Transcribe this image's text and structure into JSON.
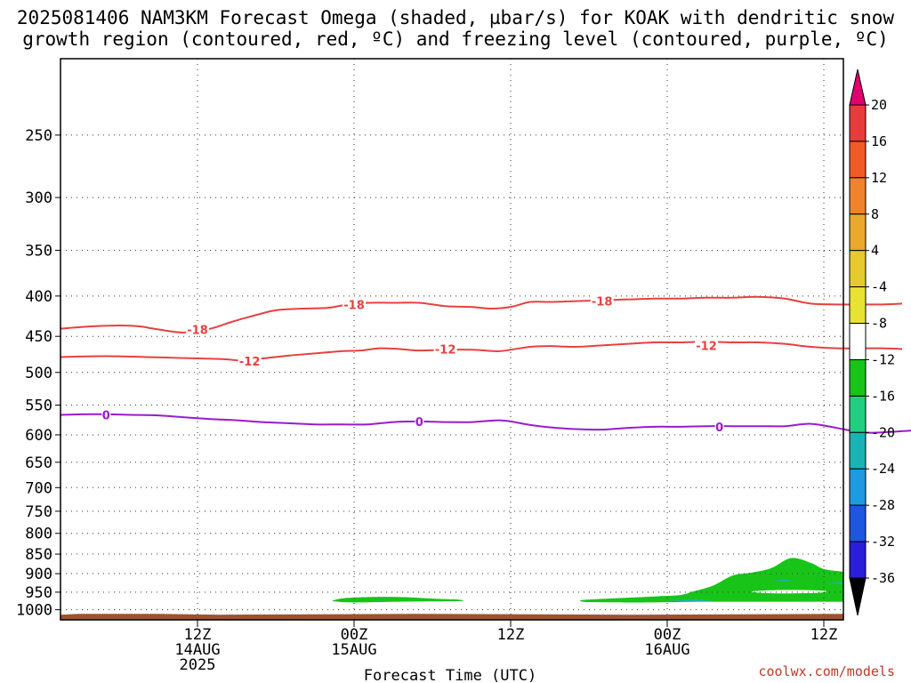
{
  "title_line1": "2025081406 NAM3KM Forecast Omega (shaded, µbar/s) for KOAK with dendritic snow",
  "title_line2": "growth region (contoured, red, ºC) and freezing level (contoured, purple, ºC)",
  "credit": "coolwx.com/models",
  "chart_data": {
    "type": "time-height cross section",
    "xlabel": "Forecast Time (UTC)",
    "x_range_hours": [
      -4.5,
      55.5
    ],
    "x_ticks": [
      {
        "hour": 6,
        "labels": [
          "12Z",
          "14AUG",
          "2025"
        ]
      },
      {
        "hour": 18,
        "labels": [
          "00Z",
          "15AUG"
        ]
      },
      {
        "hour": 30,
        "labels": [
          "12Z"
        ]
      },
      {
        "hour": 42,
        "labels": [
          "00Z",
          "16AUG"
        ]
      },
      {
        "hour": 54,
        "labels": [
          "12Z"
        ]
      }
    ],
    "y_axis": "pressure (hPa)",
    "y_ticks": [
      250,
      300,
      350,
      400,
      450,
      500,
      550,
      600,
      650,
      700,
      750,
      800,
      850,
      900,
      950,
      1000
    ],
    "y_range": [
      200,
      1030
    ],
    "grid": "dotted",
    "colorbar": {
      "label_values": [
        20,
        16,
        12,
        8,
        4,
        -4,
        -8,
        -12,
        -16,
        -20,
        -24,
        -28,
        -32,
        -36
      ],
      "colors": [
        "#e0006e",
        "#e83c3c",
        "#f05a28",
        "#f0822c",
        "#e9a82a",
        "#e6c92c",
        "#e8e233",
        "#ffffff",
        "#18c418",
        "#20d080",
        "#1ab3b3",
        "#1e9ae0",
        "#1e56e0",
        "#2a1ed8",
        "#6a12c8",
        "#9a10c8",
        "#a0a0a0",
        "#000000"
      ]
    },
    "contours": [
      {
        "name": "-18",
        "color": "#e84040",
        "label_text": "-18",
        "points": [
          [
            -4.5,
            440
          ],
          [
            -2,
            437
          ],
          [
            0,
            436
          ],
          [
            1.5,
            437
          ],
          [
            3,
            441
          ],
          [
            5,
            445
          ],
          [
            7,
            440
          ],
          [
            8.5,
            432
          ],
          [
            10,
            425
          ],
          [
            12,
            417
          ],
          [
            14,
            415
          ],
          [
            16,
            414
          ],
          [
            17.5,
            410
          ],
          [
            19,
            408
          ],
          [
            21,
            408
          ],
          [
            23,
            408
          ],
          [
            25,
            412
          ],
          [
            27,
            413
          ],
          [
            28.5,
            415
          ],
          [
            30,
            413
          ],
          [
            31.5,
            407
          ],
          [
            33,
            407
          ],
          [
            35,
            406
          ],
          [
            37,
            405
          ],
          [
            39,
            404
          ],
          [
            41,
            403
          ],
          [
            43,
            403
          ],
          [
            45,
            402
          ],
          [
            47,
            402
          ],
          [
            49,
            401
          ],
          [
            51,
            403
          ],
          [
            53,
            409
          ],
          [
            55,
            410
          ],
          [
            57,
            410
          ],
          [
            58.5,
            410
          ],
          [
            60,
            409
          ]
        ],
        "labels": [
          [
            6,
            441
          ],
          [
            18,
            410
          ],
          [
            37,
            406
          ]
        ]
      },
      {
        "name": "-12",
        "color": "#e84040",
        "label_text": "-12",
        "points": [
          [
            -4.5,
            478
          ],
          [
            -2,
            477
          ],
          [
            0,
            477
          ],
          [
            2,
            478
          ],
          [
            4,
            479
          ],
          [
            6,
            480
          ],
          [
            8,
            481
          ],
          [
            9.5,
            483
          ],
          [
            11,
            480
          ],
          [
            13,
            476
          ],
          [
            15,
            473
          ],
          [
            17,
            470
          ],
          [
            18.5,
            469
          ],
          [
            20,
            466
          ],
          [
            21.5,
            467
          ],
          [
            23,
            469
          ],
          [
            25,
            468
          ],
          [
            27,
            468
          ],
          [
            29,
            470
          ],
          [
            30,
            468
          ],
          [
            31.5,
            464
          ],
          [
            33,
            463
          ],
          [
            35,
            464
          ],
          [
            37,
            462
          ],
          [
            39,
            460
          ],
          [
            41,
            458
          ],
          [
            43,
            458
          ],
          [
            45,
            457
          ],
          [
            47,
            458
          ],
          [
            49,
            458
          ],
          [
            51,
            460
          ],
          [
            53,
            464
          ],
          [
            55,
            466
          ],
          [
            57,
            466
          ],
          [
            58.5,
            466
          ],
          [
            60,
            467
          ]
        ],
        "labels": [
          [
            10,
            484
          ],
          [
            25,
            467
          ],
          [
            45,
            462
          ]
        ]
      },
      {
        "name": "0",
        "color": "#9a1ad0",
        "label_text": "0",
        "points": [
          [
            -4.5,
            566
          ],
          [
            -3,
            565
          ],
          [
            -1,
            565
          ],
          [
            1,
            566
          ],
          [
            3,
            567
          ],
          [
            5,
            570
          ],
          [
            7,
            573
          ],
          [
            9,
            575
          ],
          [
            11,
            578
          ],
          [
            13,
            580
          ],
          [
            15,
            582
          ],
          [
            17,
            582
          ],
          [
            19,
            582
          ],
          [
            21,
            578
          ],
          [
            23,
            577
          ],
          [
            25,
            578
          ],
          [
            27,
            578
          ],
          [
            29,
            575
          ],
          [
            30,
            577
          ],
          [
            31.5,
            583
          ],
          [
            33,
            587
          ],
          [
            35,
            590
          ],
          [
            37,
            591
          ],
          [
            39,
            588
          ],
          [
            41,
            586
          ],
          [
            43,
            586
          ],
          [
            45,
            585
          ],
          [
            47,
            585
          ],
          [
            49,
            585
          ],
          [
            51,
            585
          ],
          [
            53,
            581
          ],
          [
            55,
            588
          ],
          [
            57,
            596
          ],
          [
            59,
            595
          ],
          [
            61,
            592
          ]
        ],
        "labels": [
          [
            -1,
            566
          ],
          [
            23,
            577
          ],
          [
            46,
            586
          ]
        ]
      }
    ],
    "shaded_regions": [
      {
        "name": "omega -4 to -8 (west)",
        "color": "#18c418",
        "points": [
          [
            16.5,
            972
          ],
          [
            17.5,
            966
          ],
          [
            20,
            963
          ],
          [
            22,
            964
          ],
          [
            24,
            968
          ],
          [
            26,
            971
          ],
          [
            26.2,
            975
          ],
          [
            24,
            976
          ],
          [
            21,
            977
          ],
          [
            18,
            979
          ],
          [
            16.5,
            976
          ]
        ]
      },
      {
        "name": "omega -4 to -8 (east)",
        "color": "#18c418",
        "points": [
          [
            35.5,
            972
          ],
          [
            38,
            967
          ],
          [
            41,
            962
          ],
          [
            43,
            958
          ],
          [
            44,
            948
          ],
          [
            45.5,
            932
          ],
          [
            47,
            905
          ],
          [
            48.5,
            897
          ],
          [
            50,
            885
          ],
          [
            51.5,
            860
          ],
          [
            53,
            872
          ],
          [
            54,
            888
          ],
          [
            55.5,
            895
          ],
          [
            57.5,
            905
          ],
          [
            58.5,
            912
          ],
          [
            60,
            918
          ],
          [
            61,
            927
          ],
          [
            60.5,
            940
          ],
          [
            59,
            951
          ],
          [
            61,
            961
          ],
          [
            60.5,
            975
          ],
          [
            59,
            976
          ],
          [
            56,
            977
          ],
          [
            50,
            977
          ],
          [
            45,
            977
          ],
          [
            40,
            979
          ],
          [
            36,
            978
          ]
        ]
      },
      {
        "name": "omega -8 to -12 (core)",
        "color": "#1ab3b3",
        "points": [
          [
            54.5,
            925
          ],
          [
            56,
            922
          ],
          [
            57.2,
            925
          ],
          [
            56,
            928
          ],
          [
            54.5,
            927
          ]
        ]
      },
      {
        "name": "omega -8 to -12 (small)",
        "color": "#1ab3b3",
        "points": [
          [
            42,
            973
          ],
          [
            44,
            970
          ],
          [
            45.5,
            973
          ],
          [
            44,
            975
          ]
        ]
      },
      {
        "name": "omega -8 to -12 (dot)",
        "color": "#1ab3b3",
        "points": [
          [
            50.2,
            918
          ],
          [
            51,
            916
          ],
          [
            51.6,
            918
          ],
          [
            51,
            920
          ]
        ]
      },
      {
        "name": "omega weak gap",
        "color": "#ffffff",
        "points": [
          [
            48.5,
            948
          ],
          [
            51,
            944
          ],
          [
            54,
            946
          ],
          [
            53.5,
            952
          ],
          [
            50,
            953
          ]
        ]
      }
    ],
    "terrain": {
      "name": "ground",
      "color": "#a0522d",
      "top_pressure": 1012
    }
  }
}
